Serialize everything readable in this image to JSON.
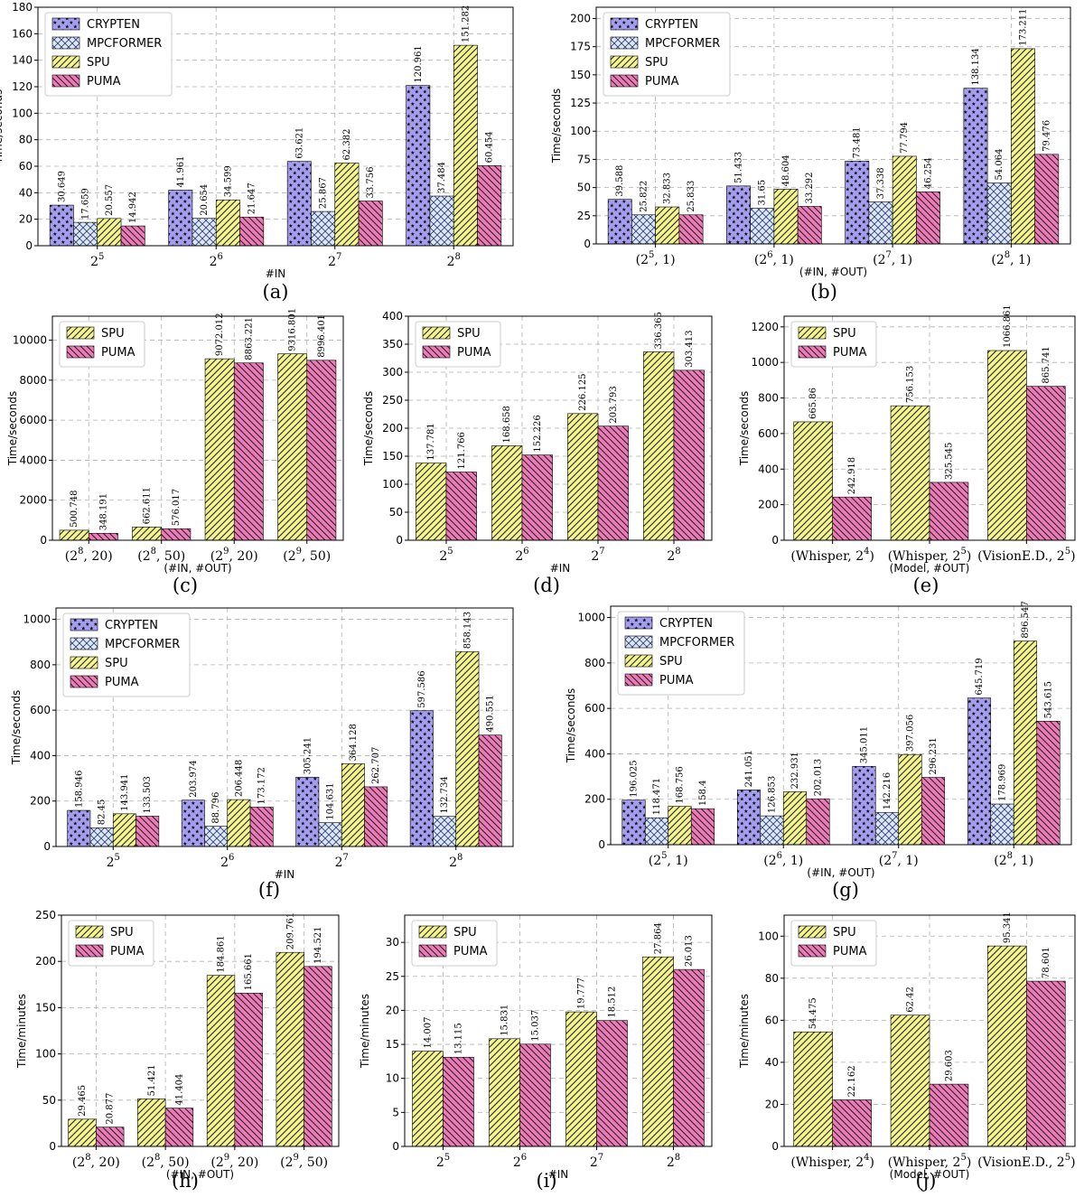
{
  "colors": {
    "CRYPTEN": "#a59ef0",
    "MPCFORMER": "#dbe6f6",
    "SPU": "#f5f58a",
    "PUMA": "#f07ab9"
  },
  "patterns": {
    "CRYPTEN": "stars",
    "MPCFORMER": "crosshatch",
    "SPU": "forward-diagonal",
    "PUMA": "backward-diagonal"
  },
  "chart_data": [
    {
      "id": "a",
      "panel_label": "(a)",
      "type": "bar",
      "xlabel": "#IN",
      "ylabel": "Time/seconds",
      "categories": [
        {
          "base": "2",
          "sup": "5"
        },
        {
          "base": "2",
          "sup": "6"
        },
        {
          "base": "2",
          "sup": "7"
        },
        {
          "base": "2",
          "sup": "8"
        }
      ],
      "ylim": [
        0,
        180
      ],
      "yticks": [
        0,
        20,
        40,
        60,
        80,
        100,
        120,
        140,
        160,
        180
      ],
      "grid": true,
      "legend": "top-left",
      "series": [
        {
          "name": "CRYPTEN",
          "values": [
            30.649,
            41.961,
            63.621,
            120.961
          ],
          "labels": [
            "30.649",
            "41.961",
            "63.621",
            "120.961"
          ]
        },
        {
          "name": "MPCFORMER",
          "values": [
            17.659,
            20.654,
            25.867,
            37.484
          ],
          "labels": [
            "17.659",
            "20.654",
            "25.867",
            "37.484"
          ]
        },
        {
          "name": "SPU",
          "values": [
            20.557,
            34.599,
            62.382,
            151.282
          ],
          "labels": [
            "20.557",
            "34.599",
            "62.382",
            "151.282"
          ]
        },
        {
          "name": "PUMA",
          "values": [
            14.942,
            21.647,
            33.756,
            60.454
          ],
          "labels": [
            "14.942",
            "21.647",
            "33.756",
            "60.454"
          ]
        }
      ]
    },
    {
      "id": "b",
      "panel_label": "(b)",
      "type": "bar",
      "xlabel": "(#IN, #OUT)",
      "ylabel": "Time/seconds",
      "categories": [
        {
          "pre": "(2",
          "sup": "5",
          "post": ", 1)"
        },
        {
          "pre": "(2",
          "sup": "6",
          "post": ", 1)"
        },
        {
          "pre": "(2",
          "sup": "7",
          "post": ", 1)"
        },
        {
          "pre": "(2",
          "sup": "8",
          "post": ", 1)"
        }
      ],
      "ylim": [
        0,
        210
      ],
      "yticks": [
        0,
        25,
        50,
        75,
        100,
        125,
        150,
        175,
        200
      ],
      "grid": true,
      "legend": "top-left",
      "series": [
        {
          "name": "CRYPTEN",
          "values": [
            39.588,
            51.433,
            73.481,
            138.134
          ],
          "labels": [
            "39.588",
            "51.433",
            "73.481",
            "138.134"
          ]
        },
        {
          "name": "MPCFORMER",
          "values": [
            25.822,
            31.65,
            37.338,
            54.064
          ],
          "labels": [
            "25.822",
            "31.65",
            "37.338",
            "54.064"
          ]
        },
        {
          "name": "SPU",
          "values": [
            32.833,
            48.604,
            77.794,
            173.211
          ],
          "labels": [
            "32.833",
            "48.604",
            "77.794",
            "173.211"
          ]
        },
        {
          "name": "PUMA",
          "values": [
            25.833,
            33.292,
            46.254,
            79.476
          ],
          "labels": [
            "25.833",
            "33.292",
            "46.254",
            "79.476"
          ]
        }
      ]
    },
    {
      "id": "c",
      "panel_label": "(c)",
      "type": "bar",
      "xlabel": "(#IN, #OUT)",
      "ylabel": "Time/seconds",
      "categories": [
        {
          "pre": "(2",
          "sup": "8",
          "post": ", 20)"
        },
        {
          "pre": "(2",
          "sup": "8",
          "post": ", 50)"
        },
        {
          "pre": "(2",
          "sup": "9",
          "post": ", 20)"
        },
        {
          "pre": "(2",
          "sup": "9",
          "post": ", 50)"
        }
      ],
      "ylim": [
        0,
        11200
      ],
      "yticks": [
        0,
        2000,
        4000,
        6000,
        8000,
        10000
      ],
      "grid": true,
      "legend": "top-left",
      "series": [
        {
          "name": "SPU",
          "values": [
            500.748,
            662.611,
            9072.012,
            9316.801
          ],
          "labels": [
            "500.748",
            "662.611",
            "9072.012",
            "9316.801"
          ]
        },
        {
          "name": "PUMA",
          "values": [
            348.191,
            576.017,
            8863.221,
            8996.401
          ],
          "labels": [
            "348.191",
            "576.017",
            "8863.221",
            "8996.401"
          ]
        }
      ]
    },
    {
      "id": "d",
      "panel_label": "(d)",
      "type": "bar",
      "xlabel": "#IN",
      "ylabel": "Time/seconds",
      "categories": [
        {
          "base": "2",
          "sup": "5"
        },
        {
          "base": "2",
          "sup": "6"
        },
        {
          "base": "2",
          "sup": "7"
        },
        {
          "base": "2",
          "sup": "8"
        }
      ],
      "ylim": [
        0,
        400
      ],
      "yticks": [
        0,
        50,
        100,
        150,
        200,
        250,
        300,
        350,
        400
      ],
      "grid": true,
      "legend": "top-left",
      "series": [
        {
          "name": "SPU",
          "values": [
            137.781,
            168.658,
            226.125,
            336.365
          ],
          "labels": [
            "137.781",
            "168.658",
            "226.125",
            "336.365"
          ]
        },
        {
          "name": "PUMA",
          "values": [
            121.766,
            152.226,
            203.793,
            303.413
          ],
          "labels": [
            "121.766",
            "152.226",
            "203.793",
            "303.413"
          ]
        }
      ]
    },
    {
      "id": "e",
      "panel_label": "(e)",
      "type": "bar",
      "xlabel": "(Model, #OUT)",
      "ylabel": "Time/seconds",
      "categories": [
        {
          "pre": "(Whisper, 2",
          "sup": "4",
          "post": ")"
        },
        {
          "pre": "(Whisper, 2",
          "sup": "5",
          "post": ")"
        },
        {
          "pre": "(VisionE.D., 2",
          "sup": "5",
          "post": ")"
        }
      ],
      "ylim": [
        0,
        1260
      ],
      "yticks": [
        0,
        200,
        400,
        600,
        800,
        1000,
        1200
      ],
      "grid": true,
      "legend": "top-left",
      "series": [
        {
          "name": "SPU",
          "values": [
            665.86,
            756.153,
            1066.861
          ],
          "labels": [
            "665.86",
            "756.153",
            "1066.861"
          ]
        },
        {
          "name": "PUMA",
          "values": [
            242.918,
            325.545,
            865.741
          ],
          "labels": [
            "242.918",
            "325.545",
            "865.741"
          ]
        }
      ]
    },
    {
      "id": "f",
      "panel_label": "(f)",
      "type": "bar",
      "xlabel": "#IN",
      "ylabel": "Time/seconds",
      "categories": [
        {
          "base": "2",
          "sup": "5"
        },
        {
          "base": "2",
          "sup": "6"
        },
        {
          "base": "2",
          "sup": "7"
        },
        {
          "base": "2",
          "sup": "8"
        }
      ],
      "ylim": [
        0,
        1050
      ],
      "yticks": [
        0,
        200,
        400,
        600,
        800,
        1000
      ],
      "grid": true,
      "legend": "top-left",
      "series": [
        {
          "name": "CRYPTEN",
          "values": [
            158.946,
            203.974,
            305.241,
            597.586
          ],
          "labels": [
            "158.946",
            "203.974",
            "305.241",
            "597.586"
          ]
        },
        {
          "name": "MPCFORMER",
          "values": [
            82.45,
            88.796,
            104.631,
            132.734
          ],
          "labels": [
            "82.45",
            "88.796",
            "104.631",
            "132.734"
          ]
        },
        {
          "name": "SPU",
          "values": [
            143.941,
            206.448,
            364.128,
            858.143
          ],
          "labels": [
            "143.941",
            "206.448",
            "364.128",
            "858.143"
          ]
        },
        {
          "name": "PUMA",
          "values": [
            133.503,
            173.172,
            262.707,
            490.551
          ],
          "labels": [
            "133.503",
            "173.172",
            "262.707",
            "490.551"
          ]
        }
      ]
    },
    {
      "id": "g",
      "panel_label": "(g)",
      "type": "bar",
      "xlabel": "(#IN, #OUT)",
      "ylabel": "Time/seconds",
      "categories": [
        {
          "pre": "(2",
          "sup": "5",
          "post": ", 1)"
        },
        {
          "pre": "(2",
          "sup": "6",
          "post": ", 1)"
        },
        {
          "pre": "(2",
          "sup": "7",
          "post": ", 1)"
        },
        {
          "pre": "(2",
          "sup": "8",
          "post": ", 1)"
        }
      ],
      "ylim": [
        0,
        1050
      ],
      "yticks": [
        0,
        200,
        400,
        600,
        800,
        1000
      ],
      "grid": true,
      "legend": "top-left",
      "series": [
        {
          "name": "CRYPTEN",
          "values": [
            196.025,
            241.051,
            345.011,
            645.719
          ],
          "labels": [
            "196.025",
            "241.051",
            "345.011",
            "645.719"
          ]
        },
        {
          "name": "MPCFORMER",
          "values": [
            118.471,
            126.853,
            142.216,
            178.969
          ],
          "labels": [
            "118.471",
            "126.853",
            "142.216",
            "178.969"
          ]
        },
        {
          "name": "SPU",
          "values": [
            168.756,
            232.931,
            397.056,
            896.547
          ],
          "labels": [
            "168.756",
            "232.931",
            "397.056",
            "896.547"
          ]
        },
        {
          "name": "PUMA",
          "values": [
            158.4,
            202.013,
            296.231,
            543.615
          ],
          "labels": [
            "158.4",
            "202.013",
            "296.231",
            "543.615"
          ]
        }
      ]
    },
    {
      "id": "h",
      "panel_label": "(h)",
      "type": "bar",
      "xlabel": "(#IN, #OUT)",
      "ylabel": "Time/minutes",
      "categories": [
        {
          "pre": "(2",
          "sup": "8",
          "post": ", 20)"
        },
        {
          "pre": "(2",
          "sup": "8",
          "post": ", 50)"
        },
        {
          "pre": "(2",
          "sup": "9",
          "post": ", 20)"
        },
        {
          "pre": "(2",
          "sup": "9",
          "post": ", 50)"
        }
      ],
      "ylim": [
        0,
        250
      ],
      "yticks": [
        0,
        50,
        100,
        150,
        200,
        250
      ],
      "grid": true,
      "legend": "top-left",
      "series": [
        {
          "name": "SPU",
          "values": [
            29.465,
            51.421,
            184.861,
            209.761
          ],
          "labels": [
            "29.465",
            "51.421",
            "184.861",
            "209.761"
          ]
        },
        {
          "name": "PUMA",
          "values": [
            20.877,
            41.404,
            165.661,
            194.521
          ],
          "labels": [
            "20.877",
            "41.404",
            "165.661",
            "194.521"
          ]
        }
      ]
    },
    {
      "id": "i",
      "panel_label": "(i)",
      "type": "bar",
      "xlabel": "#IN",
      "ylabel": "Time/minutes",
      "categories": [
        {
          "base": "2",
          "sup": "5"
        },
        {
          "base": "2",
          "sup": "6"
        },
        {
          "base": "2",
          "sup": "7"
        },
        {
          "base": "2",
          "sup": "8"
        }
      ],
      "ylim": [
        0,
        34
      ],
      "yticks": [
        0,
        5,
        10,
        15,
        20,
        25,
        30
      ],
      "grid": true,
      "legend": "top-left",
      "series": [
        {
          "name": "SPU",
          "values": [
            14.007,
            15.831,
            19.777,
            27.864
          ],
          "labels": [
            "14.007",
            "15.831",
            "19.777",
            "27.864"
          ]
        },
        {
          "name": "PUMA",
          "values": [
            13.115,
            15.037,
            18.512,
            26.013
          ],
          "labels": [
            "13.115",
            "15.037",
            "18.512",
            "26.013"
          ]
        }
      ]
    },
    {
      "id": "j",
      "panel_label": "(j)",
      "type": "bar",
      "xlabel": "(Model, #OUT)",
      "ylabel": "Time/minutes",
      "categories": [
        {
          "pre": "(Whisper, 2",
          "sup": "4",
          "post": ")"
        },
        {
          "pre": "(Whisper, 2",
          "sup": "5",
          "post": ")"
        },
        {
          "pre": "(VisionE.D., 2",
          "sup": "5",
          "post": ")"
        }
      ],
      "ylim": [
        0,
        110
      ],
      "yticks": [
        0,
        20,
        40,
        60,
        80,
        100
      ],
      "grid": true,
      "legend": "top-left",
      "series": [
        {
          "name": "SPU",
          "values": [
            54.475,
            62.42,
            95.341
          ],
          "labels": [
            "54.475",
            "62.42",
            "95.341"
          ]
        },
        {
          "name": "PUMA",
          "values": [
            22.162,
            29.603,
            78.601
          ],
          "labels": [
            "22.162",
            "29.603",
            "78.601"
          ]
        }
      ]
    }
  ]
}
